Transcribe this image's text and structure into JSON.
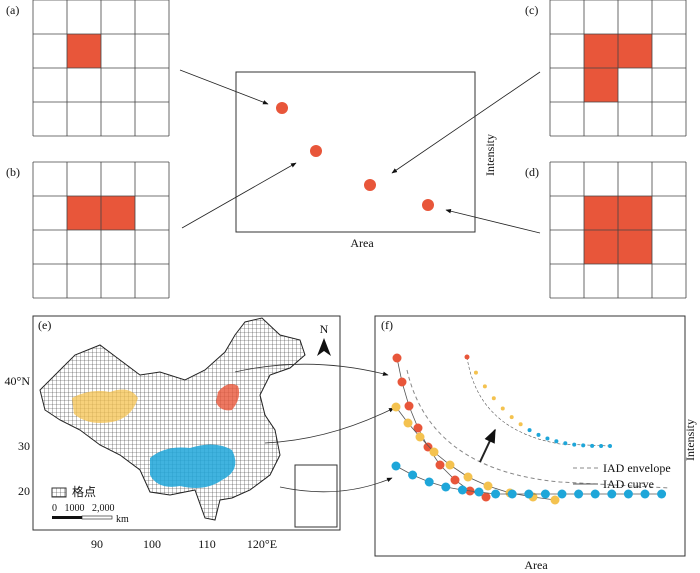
{
  "panels": {
    "a": {
      "label": "(a)"
    },
    "b": {
      "label": "(b)"
    },
    "c": {
      "label": "(c)"
    },
    "d": {
      "label": "(d)"
    },
    "center": {
      "y_label": "Intensity",
      "x_label": "Area"
    },
    "e": {
      "label": "(e)",
      "north": "N",
      "lat_labels": [
        "40°N",
        "30",
        "20"
      ],
      "lon_labels": [
        "90",
        "100",
        "110",
        "120°E"
      ],
      "legend": "格点",
      "scale": "0   1000   2,000",
      "scale_unit": "km"
    },
    "f": {
      "label": "(f)",
      "y_label": "Intensity",
      "x_label": "Area",
      "legend": [
        "IAD envelope",
        "IAD curve"
      ]
    }
  }
}
